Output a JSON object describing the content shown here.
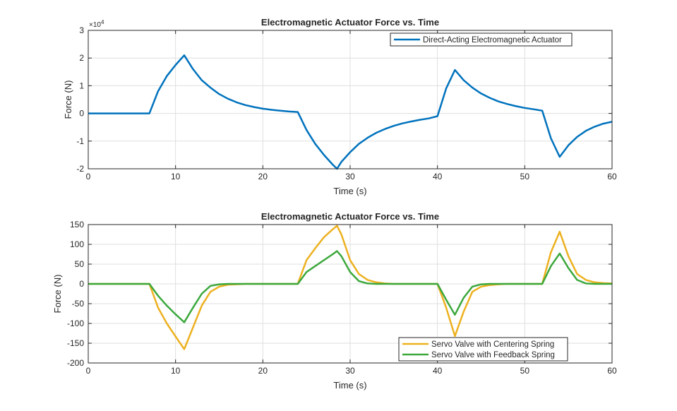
{
  "chart_data": [
    {
      "type": "line",
      "title": "Electromagnetic Actuator Force vs. Time",
      "xlabel": "Time (s)",
      "ylabel": "Force (N)",
      "y_exponent_label": "×10^4",
      "xlim": [
        0,
        60
      ],
      "ylim": [
        -20000,
        30000
      ],
      "xticks": [
        0,
        10,
        20,
        30,
        40,
        50,
        60
      ],
      "yticks": [
        -20000,
        -10000,
        0,
        10000,
        20000,
        30000
      ],
      "ytick_labels": [
        "-2",
        "-1",
        "0",
        "1",
        "2",
        "3"
      ],
      "grid": true,
      "legend_placement": "top-right",
      "x": [
        0,
        1,
        2,
        3,
        4,
        5,
        6,
        7,
        8,
        9,
        10,
        11,
        12,
        13,
        14,
        15,
        16,
        17,
        18,
        19,
        20,
        21,
        22,
        23,
        24,
        25,
        26,
        27,
        28,
        28.5,
        29,
        30,
        31,
        32,
        33,
        34,
        35,
        36,
        37,
        38,
        39,
        40,
        41,
        42,
        43,
        44,
        45,
        46,
        47,
        48,
        49,
        50,
        51,
        52,
        53,
        54,
        55,
        56,
        57,
        58,
        59,
        60
      ],
      "series": [
        {
          "name": "Direct-Acting Electromagnetic Actuator",
          "color": "#0072BD",
          "values": [
            0,
            0,
            0,
            0,
            0,
            0,
            0,
            0,
            8000,
            13500,
            17500,
            21000,
            16000,
            12000,
            9300,
            7000,
            5300,
            4000,
            3000,
            2300,
            1700,
            1300,
            1000,
            700,
            500,
            -6000,
            -11000,
            -15000,
            -18500,
            -20000,
            -17500,
            -14000,
            -11000,
            -8800,
            -7000,
            -5600,
            -4500,
            -3600,
            -2900,
            -2300,
            -1800,
            -1000,
            9000,
            15700,
            12000,
            9300,
            7200,
            5600,
            4300,
            3400,
            2600,
            2000,
            1500,
            1000,
            -9000,
            -15700,
            -11500,
            -8500,
            -6300,
            -4800,
            -3700,
            -3000
          ]
        }
      ]
    },
    {
      "type": "line",
      "title": "Electromagnetic Actuator Force vs. Time",
      "xlabel": "Time (s)",
      "ylabel": "Force (N)",
      "xlim": [
        0,
        60
      ],
      "ylim": [
        -200,
        150
      ],
      "xticks": [
        0,
        10,
        20,
        30,
        40,
        50,
        60
      ],
      "yticks": [
        -200,
        -150,
        -100,
        -50,
        0,
        50,
        100,
        150
      ],
      "ytick_labels": [
        "-200",
        "-150",
        "-100",
        "-50",
        "0",
        "50",
        "100",
        "150"
      ],
      "grid": true,
      "legend_placement": "bottom-right",
      "x": [
        0,
        1,
        2,
        3,
        4,
        5,
        6,
        7,
        8,
        9,
        10,
        11,
        12,
        13,
        14,
        15,
        16,
        17,
        18,
        19,
        20,
        21,
        22,
        23,
        24,
        25,
        26,
        27,
        28,
        28.5,
        29,
        30,
        31,
        32,
        33,
        34,
        35,
        36,
        37,
        38,
        39,
        40,
        41,
        42,
        43,
        44,
        45,
        46,
        47,
        48,
        49,
        50,
        51,
        52,
        53,
        54,
        55,
        56,
        57,
        58,
        59,
        60
      ],
      "series": [
        {
          "name": "Servo Valve with Centering Spring",
          "color": "#EDB120",
          "values": [
            0,
            0,
            0,
            0,
            0,
            0,
            0,
            0,
            -60,
            -100,
            -133,
            -165,
            -110,
            -55,
            -20,
            -7,
            -2,
            -1,
            0,
            0,
            0,
            0,
            0,
            0,
            0,
            60,
            90,
            118,
            138,
            147,
            125,
            60,
            25,
            10,
            4,
            1,
            0,
            0,
            0,
            0,
            0,
            0,
            -60,
            -132,
            -70,
            -20,
            -7,
            -3,
            -1,
            0,
            0,
            0,
            0,
            0,
            80,
            132,
            70,
            25,
            10,
            4,
            2,
            1
          ]
        },
        {
          "name": "Servo Valve with Feedback Spring",
          "color": "#3CA83C",
          "values": [
            0,
            0,
            0,
            0,
            0,
            0,
            0,
            0,
            -30,
            -55,
            -77,
            -97,
            -60,
            -25,
            -5,
            -1,
            0,
            0,
            0,
            0,
            0,
            0,
            0,
            0,
            0,
            30,
            45,
            60,
            75,
            83,
            70,
            30,
            7,
            1,
            0,
            0,
            0,
            0,
            0,
            0,
            0,
            0,
            -40,
            -78,
            -35,
            -7,
            -1,
            0,
            0,
            0,
            0,
            0,
            0,
            0,
            45,
            77,
            40,
            10,
            1,
            0,
            0,
            0
          ]
        }
      ]
    }
  ]
}
